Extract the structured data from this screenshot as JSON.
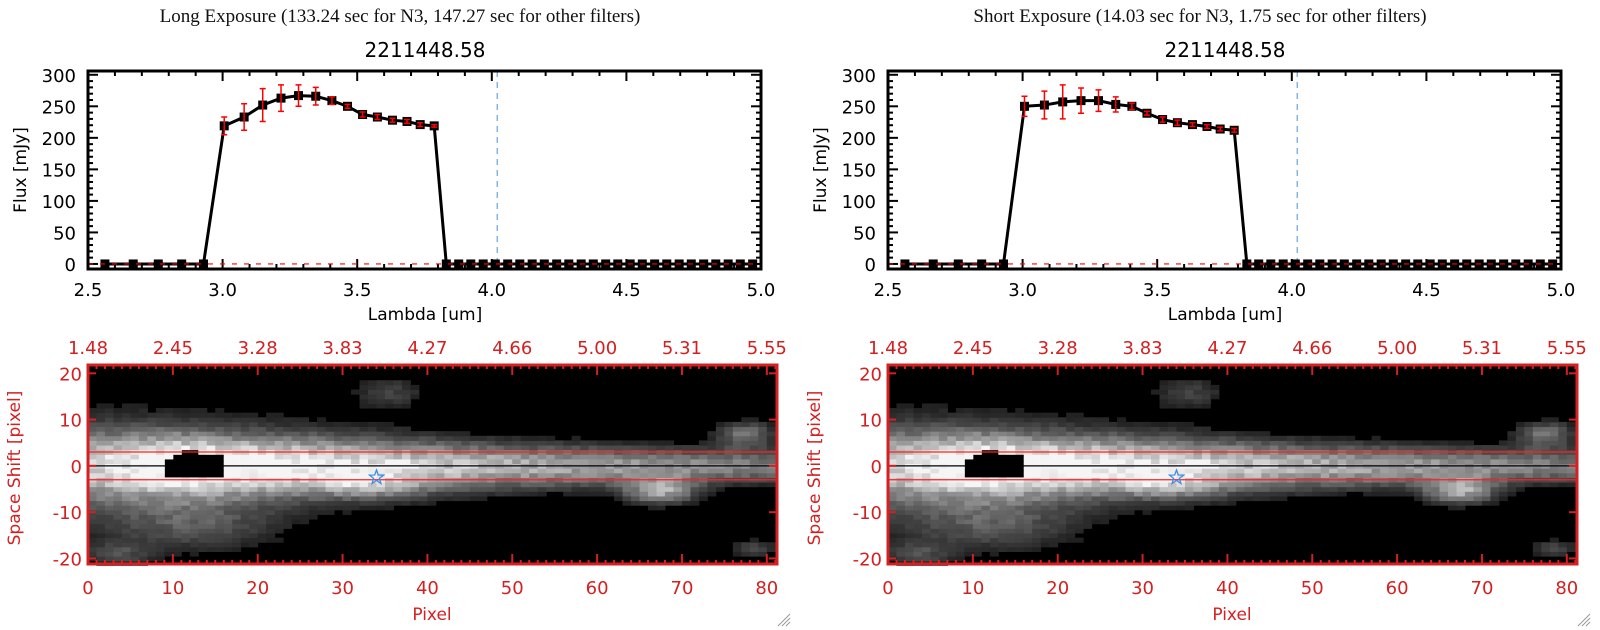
{
  "colors": {
    "axis": "#000000",
    "line": "#000000",
    "error_bar": "#ff0000",
    "image_axis": "#d42020",
    "marker_line": "#4a90d9",
    "star": "#3a8ee6",
    "cut_line": "#ff2020"
  },
  "panels": [
    {
      "title": "Long Exposure (133.24 sec for N3, 147.27 sec for other filters)",
      "object_id": "2211448.58"
    },
    {
      "title": "Short Exposure (14.03 sec for N3, 1.75 sec for other filters)",
      "object_id": "2211448.58"
    }
  ],
  "chart_data": [
    {
      "type": "line",
      "panel": 0,
      "xlabel": "Lambda [um]",
      "ylabel": "Flux [mJy]",
      "xlim": [
        2.5,
        5.0
      ],
      "ylim": [
        -8,
        306
      ],
      "xticks": [
        "2.5",
        "3.0",
        "3.5",
        "4.0",
        "4.5",
        "5.0"
      ],
      "yticks": [
        "0",
        "50",
        "100",
        "150",
        "200",
        "250",
        "300"
      ],
      "vline_x": 4.02,
      "zero_line": true,
      "x": [
        2.563,
        2.668,
        2.761,
        2.848,
        2.929,
        3.006,
        3.08,
        3.149,
        3.217,
        3.282,
        3.346,
        3.406,
        3.464,
        3.52,
        3.575,
        3.631,
        3.685,
        3.734,
        3.786,
        3.831,
        3.877,
        3.922,
        3.968,
        4.013,
        4.059,
        4.104,
        4.15,
        4.195,
        4.241,
        4.286,
        4.332,
        4.377,
        4.423,
        4.468,
        4.514,
        4.559,
        4.605,
        4.65,
        4.696,
        4.741,
        4.787,
        4.832,
        4.878,
        4.923,
        4.969
      ],
      "y": [
        0,
        0,
        0,
        0,
        0,
        219,
        233,
        252,
        263,
        267,
        266,
        259,
        250,
        237,
        233,
        228,
        226,
        221,
        219,
        0,
        0,
        0,
        0,
        0,
        0,
        0,
        0,
        0,
        0,
        0,
        0,
        0,
        0,
        0,
        0,
        0,
        0,
        0,
        0,
        0,
        0,
        0,
        0,
        0,
        0
      ],
      "yerr": [
        0,
        0,
        0,
        0,
        0,
        14,
        21,
        26,
        21,
        17,
        14,
        6,
        3,
        4,
        4,
        3,
        3,
        3,
        2,
        0,
        0,
        0,
        0,
        0,
        0,
        0,
        0,
        0,
        0,
        0,
        0,
        0,
        0,
        0,
        0,
        0,
        0,
        0,
        0,
        0,
        0,
        0,
        0,
        0,
        0
      ]
    },
    {
      "type": "line",
      "panel": 1,
      "xlabel": "Lambda [um]",
      "ylabel": "Flux [mJy]",
      "xlim": [
        2.5,
        5.0
      ],
      "ylim": [
        -8,
        306
      ],
      "xticks": [
        "2.5",
        "3.0",
        "3.5",
        "4.0",
        "4.5",
        "5.0"
      ],
      "yticks": [
        "0",
        "50",
        "100",
        "150",
        "200",
        "250",
        "300"
      ],
      "vline_x": 4.02,
      "zero_line": true,
      "x": [
        2.563,
        2.668,
        2.761,
        2.848,
        2.929,
        3.007,
        3.081,
        3.149,
        3.217,
        3.282,
        3.346,
        3.406,
        3.462,
        3.52,
        3.575,
        3.631,
        3.685,
        3.734,
        3.786,
        3.833,
        3.877,
        3.922,
        3.968,
        4.013,
        4.059,
        4.104,
        4.15,
        4.195,
        4.241,
        4.286,
        4.332,
        4.377,
        4.423,
        4.468,
        4.514,
        4.559,
        4.605,
        4.65,
        4.696,
        4.741,
        4.787,
        4.832,
        4.878,
        4.923,
        4.969
      ],
      "y": [
        0,
        0,
        0,
        0,
        0,
        250,
        252,
        257,
        259,
        259,
        253,
        250,
        239,
        229,
        224,
        221,
        218,
        214,
        212,
        0,
        0,
        0,
        0,
        0,
        0,
        0,
        0,
        0,
        0,
        0,
        0,
        0,
        0,
        0,
        0,
        0,
        0,
        0,
        0,
        0,
        0,
        0,
        0,
        0,
        0
      ],
      "yerr": [
        0,
        0,
        0,
        0,
        0,
        16,
        22,
        27,
        20,
        17,
        12,
        5,
        3,
        4,
        4,
        3,
        3,
        3,
        3,
        0,
        0,
        0,
        0,
        0,
        0,
        0,
        0,
        0,
        0,
        0,
        0,
        0,
        0,
        0,
        0,
        0,
        0,
        0,
        0,
        0,
        0,
        0,
        0,
        0,
        0
      ]
    },
    {
      "type": "heatmap",
      "panel": 0,
      "xlabel": "Pixel",
      "ylabel": "Space Shift [pixel]",
      "xlim": [
        0,
        81.2
      ],
      "ylim": [
        -21.2,
        21.8
      ],
      "xticks": [
        "0",
        "10",
        "20",
        "30",
        "40",
        "50",
        "60",
        "70",
        "80"
      ],
      "yticks": [
        "-20",
        "-10",
        "0",
        "10",
        "20"
      ],
      "top_xticks": [
        "1.48",
        "2.45",
        "3.28",
        "3.83",
        "4.27",
        "4.66",
        "5.00",
        "5.31",
        "5.55"
      ],
      "colormap": "grayscale",
      "aperture_lines": [
        3,
        -3
      ],
      "center_line": 0,
      "star_marker": {
        "pixel": 34,
        "shift": -2.5
      },
      "saturated_region": {
        "pixel": [
          9,
          15
        ],
        "shift": [
          -2,
          2
        ]
      },
      "intensity_model": {
        "band": {
          "center": 0,
          "peak_pixel": 10,
          "peak": 1.0,
          "end_level": 0.5,
          "width_start": 5,
          "width_end": 2.6
        },
        "blobs": [
          {
            "pixel": 67,
            "shift": -5.5,
            "sx": 3,
            "sy": 2,
            "a": 0.6
          },
          {
            "pixel": 77,
            "shift": 7,
            "sx": 2.5,
            "sy": 2,
            "a": 0.45
          },
          {
            "pixel": 35,
            "shift": 16,
            "sx": 3,
            "sy": 2.5,
            "a": 0.25
          },
          {
            "pixel": 78,
            "shift": -18,
            "sx": 2,
            "sy": 1.5,
            "a": 0.3
          },
          {
            "pixel": 12,
            "shift": -13,
            "sx": 7,
            "sy": 4,
            "a": 0.28
          },
          {
            "pixel": 3,
            "shift": -19,
            "sx": 3,
            "sy": 2,
            "a": 0.25
          },
          {
            "pixel": 33,
            "shift": -4,
            "sx": 4,
            "sy": 2,
            "a": 0.3
          }
        ]
      }
    },
    {
      "type": "heatmap",
      "panel": 1,
      "xlabel": "Pixel",
      "ylabel": "Space Shift [pixel]",
      "xlim": [
        0,
        81.2
      ],
      "ylim": [
        -21.2,
        21.8
      ],
      "xticks": [
        "0",
        "10",
        "20",
        "30",
        "40",
        "50",
        "60",
        "70",
        "80"
      ],
      "yticks": [
        "-20",
        "-10",
        "0",
        "10",
        "20"
      ],
      "top_xticks": [
        "1.48",
        "2.45",
        "3.28",
        "3.83",
        "4.27",
        "4.66",
        "5.00",
        "5.31",
        "5.55"
      ],
      "colormap": "grayscale",
      "aperture_lines": [
        3,
        -3
      ],
      "center_line": 0,
      "star_marker": {
        "pixel": 34,
        "shift": -2.5
      },
      "saturated_region": {
        "pixel": [
          9,
          15
        ],
        "shift": [
          -2,
          2
        ]
      },
      "intensity_model": {
        "band": {
          "center": 0,
          "peak_pixel": 10,
          "peak": 1.0,
          "end_level": 0.5,
          "width_start": 5,
          "width_end": 2.6
        },
        "blobs": [
          {
            "pixel": 67,
            "shift": -5.5,
            "sx": 3,
            "sy": 2,
            "a": 0.6
          },
          {
            "pixel": 77,
            "shift": 7,
            "sx": 2.5,
            "sy": 2,
            "a": 0.45
          },
          {
            "pixel": 35,
            "shift": 16,
            "sx": 3,
            "sy": 2.5,
            "a": 0.25
          },
          {
            "pixel": 78,
            "shift": -18,
            "sx": 2,
            "sy": 1.5,
            "a": 0.3
          },
          {
            "pixel": 12,
            "shift": -13,
            "sx": 7,
            "sy": 4,
            "a": 0.28
          },
          {
            "pixel": 3,
            "shift": -19,
            "sx": 3,
            "sy": 2,
            "a": 0.25
          },
          {
            "pixel": 33,
            "shift": -4,
            "sx": 4,
            "sy": 2,
            "a": 0.3
          }
        ]
      }
    }
  ]
}
